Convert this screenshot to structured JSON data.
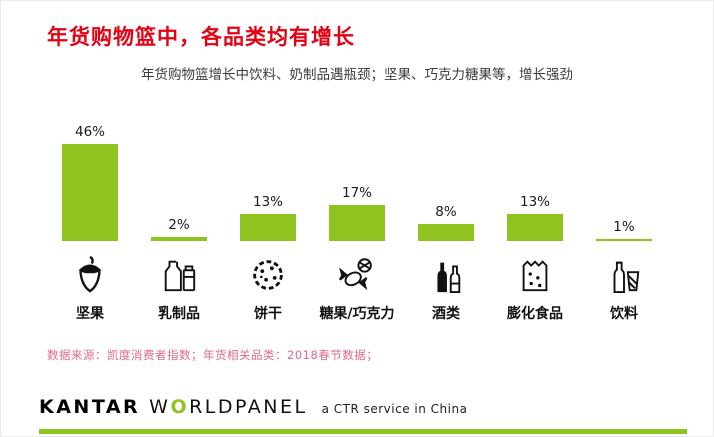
{
  "page": {
    "title": "年货购物篮中，各品类均有增长",
    "subtitle": "年货购物篮增长中饮料、奶制品遇瓶颈；坚果、巧克力糖果等，增长强劲",
    "source_note": "数据来源：凯度消费者指数；年货相关品类：2018春节数据；"
  },
  "chart_data": {
    "type": "bar",
    "title": "年货购物篮中，各品类均有增长",
    "categories": [
      "坚果",
      "乳制品",
      "饼干",
      "糖果/巧克力",
      "酒类",
      "膨化食品",
      "饮料"
    ],
    "values": [
      46,
      2,
      13,
      17,
      8,
      13,
      1
    ],
    "value_labels": [
      "46%",
      "2%",
      "13%",
      "17%",
      "8%",
      "13%",
      "1%"
    ],
    "xlabel": "",
    "ylabel": "",
    "ylim": [
      0,
      50
    ],
    "grid": false,
    "legend": "none",
    "bar_color": "#8fc31f",
    "icons": [
      "acorn-icon",
      "dairy-bottles-icon",
      "biscuit-icon",
      "candy-icon",
      "wine-bottles-icon",
      "snack-bag-icon",
      "beverage-bottle-icon"
    ]
  },
  "footer": {
    "brand_kantar": "KANTAR",
    "brand_world_prefix": "W",
    "brand_world_o": "O",
    "brand_world_suffix": "RLDPANEL",
    "tagline": "a CTR service in China"
  },
  "colors": {
    "title_red": "#e60012",
    "bar_green": "#8fc31f",
    "source_pink": "#e3688a",
    "footer_line_green": "#8fc31f"
  }
}
